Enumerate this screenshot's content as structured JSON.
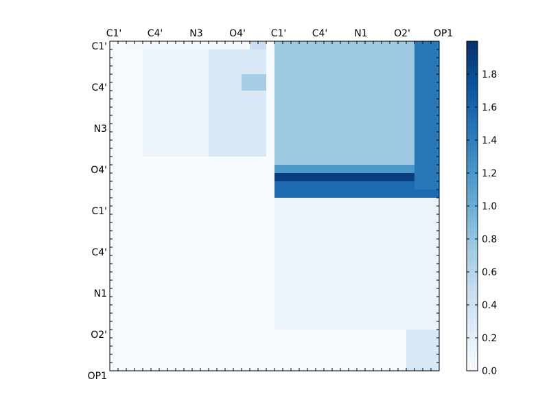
{
  "chart_data": {
    "type": "heatmap",
    "title": "",
    "xlabel": "",
    "ylabel": "",
    "grid": false,
    "n": 40,
    "x_tick_labels": [
      "C1'",
      "C4'",
      "N3",
      "O4'",
      "C1'",
      "C4'",
      "N1",
      "O2'",
      "OP1"
    ],
    "x_tick_positions": [
      0,
      5,
      10,
      15,
      20,
      25,
      30,
      35,
      40
    ],
    "y_tick_labels": [
      "C1'",
      "C4'",
      "N3",
      "O4'",
      "C1'",
      "C4'",
      "N1",
      "O2'",
      "OP1"
    ],
    "y_tick_positions": [
      0,
      5,
      10,
      15,
      20,
      25,
      30,
      35,
      40
    ],
    "colorbar": {
      "colormap": "Blues",
      "min": 0.0,
      "max": 2.0,
      "ticks": [
        "0.0",
        "0.2",
        "0.4",
        "0.6",
        "0.8",
        "1.0",
        "1.2",
        "1.4",
        "1.6",
        "1.8"
      ],
      "tick_values": [
        0.0,
        0.2,
        0.4,
        0.6,
        0.8,
        1.0,
        1.2,
        1.4,
        1.6,
        1.8
      ]
    },
    "regions": [
      {
        "rows": [
          0,
          1
        ],
        "cols": [
          2,
          19
        ],
        "value": 0.05
      },
      {
        "rows": [
          0,
          1
        ],
        "cols": [
          17,
          19
        ],
        "value": 0.45
      },
      {
        "rows": [
          1,
          14
        ],
        "cols": [
          4,
          16
        ],
        "value": 0.1
      },
      {
        "rows": [
          1,
          14
        ],
        "cols": [
          12,
          19
        ],
        "value": 0.3
      },
      {
        "rows": [
          4,
          6
        ],
        "cols": [
          16,
          19
        ],
        "value": 0.7
      },
      {
        "rows": [
          0,
          15
        ],
        "cols": [
          20,
          40
        ],
        "value": 0.75
      },
      {
        "rows": [
          15,
          16
        ],
        "cols": [
          20,
          40
        ],
        "value": 1.2
      },
      {
        "rows": [
          16,
          17
        ],
        "cols": [
          20,
          40
        ],
        "value": 1.9
      },
      {
        "rows": [
          17,
          19
        ],
        "cols": [
          20,
          40
        ],
        "value": 1.55
      },
      {
        "rows": [
          19,
          35
        ],
        "cols": [
          20,
          40
        ],
        "value": 0.12
      },
      {
        "rows": [
          35,
          40
        ],
        "cols": [
          36,
          40
        ],
        "value": 0.3
      },
      {
        "rows": [
          0,
          18
        ],
        "cols": [
          37,
          40
        ],
        "value": 1.45
      }
    ]
  }
}
